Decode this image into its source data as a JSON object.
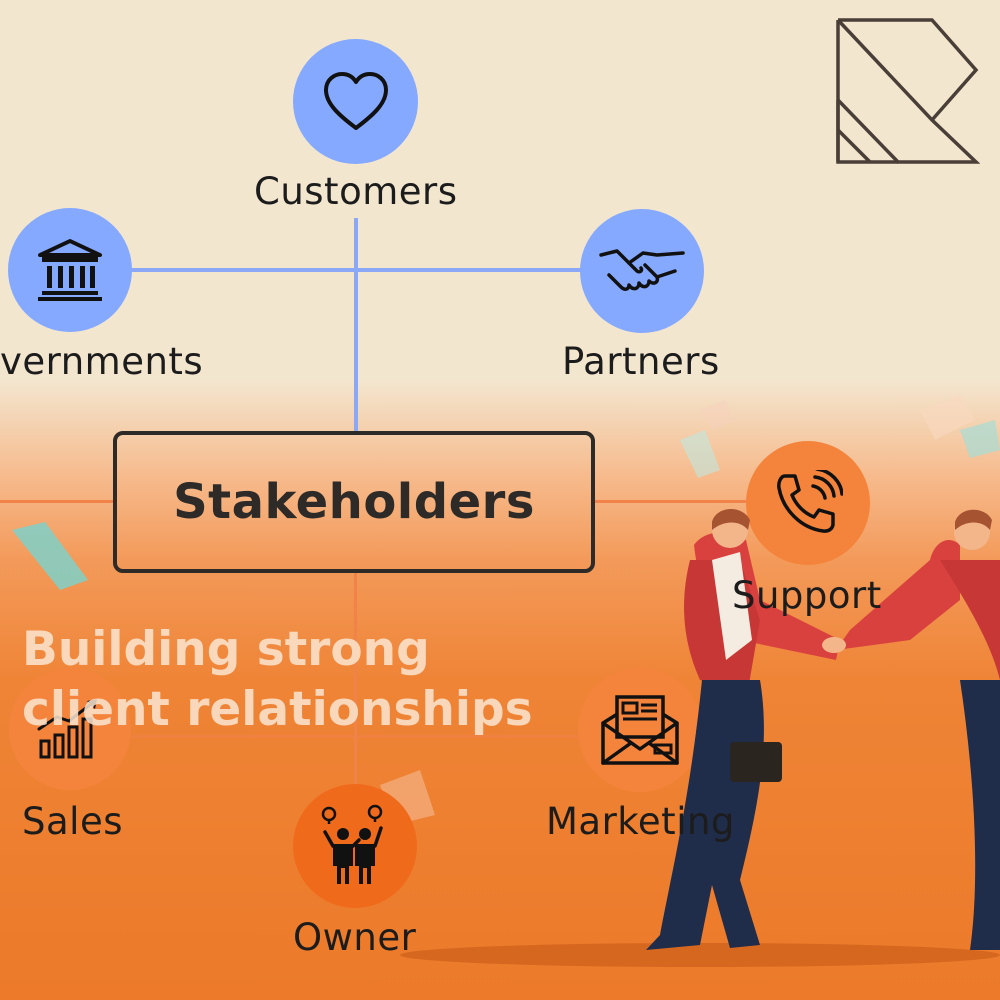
{
  "diagram": {
    "center": {
      "label": "Stakeholders"
    },
    "nodes": [
      {
        "id": "customers",
        "label": "Customers",
        "icon": "heart-icon",
        "color": "#85a9ff"
      },
      {
        "id": "governments",
        "label": "vernments",
        "icon": "government-building-icon",
        "color": "#85a9ff"
      },
      {
        "id": "partners",
        "label": "Partners",
        "icon": "handshake-icon",
        "color": "#85a9ff"
      },
      {
        "id": "support",
        "label": "Support",
        "icon": "phone-call-icon",
        "color": "#f4843c"
      },
      {
        "id": "sales",
        "label": "Sales",
        "icon": "rising-bar-chart-icon",
        "color": "#f4843c"
      },
      {
        "id": "owner",
        "label": "Owner",
        "icon": "business-owners-icon",
        "color": "#f4843c"
      },
      {
        "id": "marketing",
        "label": "Marketing",
        "icon": "newsletter-envelope-icon",
        "color": "#f4843c"
      }
    ]
  },
  "overlay": {
    "line1": "Building strong",
    "line2": "client relationships"
  },
  "logo": {
    "icon": "r-monogram-logo"
  },
  "illustration": {
    "icon": "businessmen-handshake-illustration"
  },
  "colors": {
    "blue": "#85a9ff",
    "orange": "#f4843c",
    "background_top": "#f3e6cf",
    "background_bottom": "#ec7a2a",
    "ink": "#2d2a28"
  }
}
